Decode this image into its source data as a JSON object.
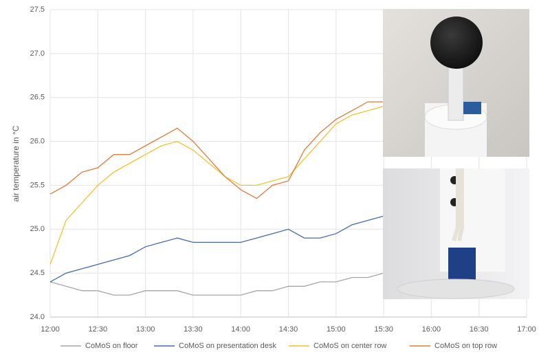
{
  "chart_data": {
    "type": "line",
    "y_label": "air temperature in °C",
    "x": [
      "12:00",
      "12:10",
      "12:20",
      "12:30",
      "12:40",
      "12:50",
      "13:00",
      "13:10",
      "13:20",
      "13:30",
      "13:40",
      "13:50",
      "14:00",
      "14:10",
      "14:20",
      "14:30",
      "14:40",
      "14:50",
      "15:00",
      "15:10",
      "15:20",
      "15:30"
    ],
    "series": [
      {
        "name": "CoMoS on floor",
        "color": "#a5a5a5",
        "values": [
          24.4,
          24.35,
          24.3,
          24.3,
          24.25,
          24.25,
          24.3,
          24.3,
          24.3,
          24.25,
          24.25,
          24.25,
          24.25,
          24.3,
          24.3,
          24.35,
          24.35,
          24.4,
          24.4,
          24.45,
          24.45,
          24.5
        ]
      },
      {
        "name": "CoMoS on presentation desk",
        "color": "#4468b0",
        "values": [
          24.4,
          24.5,
          24.55,
          24.6,
          24.65,
          24.7,
          24.8,
          24.85,
          24.9,
          24.85,
          24.85,
          24.85,
          24.85,
          24.9,
          24.95,
          25.0,
          24.9,
          24.9,
          24.95,
          25.05,
          25.1,
          25.15
        ]
      },
      {
        "name": "CoMoS on center row",
        "color": "#f2c12e",
        "values": [
          24.6,
          25.1,
          25.3,
          25.5,
          25.65,
          25.75,
          25.85,
          25.95,
          26.0,
          25.9,
          25.75,
          25.6,
          25.5,
          25.5,
          25.55,
          25.6,
          25.8,
          26.0,
          26.2,
          26.3,
          26.35,
          26.4
        ]
      },
      {
        "name": "CoMoS on top row",
        "color": "#e07b39",
        "values": [
          25.4,
          25.5,
          25.65,
          25.7,
          25.85,
          25.85,
          25.95,
          26.05,
          26.15,
          26.0,
          25.8,
          25.6,
          25.45,
          25.35,
          25.5,
          25.55,
          25.9,
          26.1,
          26.25,
          26.35,
          26.45,
          26.45
        ]
      }
    ],
    "xlim": [
      "12:00",
      "17:00"
    ],
    "xticks": [
      "12:00",
      "12:30",
      "13:00",
      "13:30",
      "14:00",
      "14:30",
      "15:00",
      "15:30",
      "16:00",
      "16:30",
      "17:00"
    ],
    "ylim": [
      24,
      27.5
    ],
    "yticks": [
      {
        "value": 24,
        "label": "24.0"
      },
      24.5,
      {
        "value": 25,
        "label": "25.0"
      },
      25.5,
      {
        "value": 26,
        "label": "26.0"
      },
      26.5,
      {
        "value": 27,
        "label": "27.0"
      },
      27.5
    ],
    "grid": true,
    "legend": "bottom"
  }
}
